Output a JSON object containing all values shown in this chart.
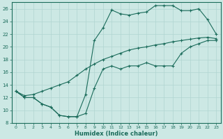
{
  "xlabel": "Humidex (Indice chaleur)",
  "xlim": [
    -0.5,
    23.5
  ],
  "ylim": [
    8,
    27
  ],
  "xticks": [
    0,
    1,
    2,
    3,
    4,
    5,
    6,
    7,
    8,
    9,
    10,
    11,
    12,
    13,
    14,
    15,
    16,
    17,
    18,
    19,
    20,
    21,
    22,
    23
  ],
  "yticks": [
    8,
    10,
    12,
    14,
    16,
    18,
    20,
    22,
    24,
    26
  ],
  "bg_color": "#cce8e4",
  "grid_color": "#b0d5d0",
  "line_color": "#1a6b5a",
  "line1_x": [
    0,
    1,
    2,
    3,
    4,
    5,
    6,
    7,
    8,
    9,
    10,
    11,
    12,
    13,
    14,
    15,
    16,
    17,
    18,
    19,
    20,
    21,
    22,
    23
  ],
  "line1_y": [
    13,
    12,
    12,
    11,
    10.5,
    9.2,
    9.0,
    9.0,
    9.5,
    13.5,
    16.5,
    17,
    16.5,
    17,
    17,
    17.5,
    17,
    17,
    17,
    19,
    20,
    20.5,
    21,
    21
  ],
  "line2_x": [
    0,
    1,
    2,
    3,
    4,
    5,
    6,
    7,
    8,
    9,
    10,
    11,
    12,
    13,
    14,
    15,
    16,
    17,
    18,
    19,
    20,
    21,
    22,
    23
  ],
  "line2_y": [
    13,
    12,
    12,
    11,
    10.5,
    9.2,
    9.0,
    9.0,
    12.5,
    21.0,
    23.0,
    25.8,
    25.2,
    25.0,
    25.3,
    25.5,
    26.5,
    26.5,
    26.5,
    25.7,
    25.7,
    26.0,
    24.3,
    22.0
  ],
  "line3_x": [
    0,
    1,
    2,
    3,
    4,
    5,
    6,
    7,
    8,
    9,
    10,
    11,
    12,
    13,
    14,
    15,
    16,
    17,
    18,
    19,
    20,
    21,
    22,
    23
  ],
  "line3_y": [
    13.0,
    12.3,
    12.5,
    13.0,
    13.5,
    14.0,
    14.5,
    15.5,
    16.5,
    17.3,
    18.0,
    18.5,
    19.0,
    19.5,
    19.8,
    20.0,
    20.3,
    20.5,
    20.8,
    21.0,
    21.2,
    21.4,
    21.5,
    21.3
  ]
}
